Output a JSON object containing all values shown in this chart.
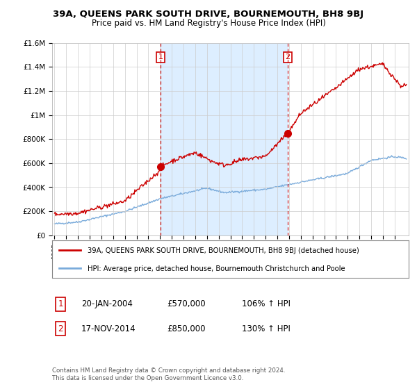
{
  "title": "39A, QUEENS PARK SOUTH DRIVE, BOURNEMOUTH, BH8 9BJ",
  "subtitle": "Price paid vs. HM Land Registry's House Price Index (HPI)",
  "legend_line1": "39A, QUEENS PARK SOUTH DRIVE, BOURNEMOUTH, BH8 9BJ (detached house)",
  "legend_line2": "HPI: Average price, detached house, Bournemouth Christchurch and Poole",
  "annotation1_label": "1",
  "annotation1_date": "20-JAN-2004",
  "annotation1_price": "£570,000",
  "annotation1_hpi": "106% ↑ HPI",
  "annotation2_label": "2",
  "annotation2_date": "17-NOV-2014",
  "annotation2_price": "£850,000",
  "annotation2_hpi": "130% ↑ HPI",
  "footer": "Contains HM Land Registry data © Crown copyright and database right 2024.\nThis data is licensed under the Open Government Licence v3.0.",
  "red_color": "#cc0000",
  "blue_color": "#7aabdb",
  "shade_color": "#ddeeff",
  "annotation_color": "#cc0000",
  "background_color": "#ffffff",
  "grid_color": "#cccccc",
  "ylim": [
    0,
    1600000
  ],
  "yticks": [
    0,
    200000,
    400000,
    600000,
    800000,
    1000000,
    1200000,
    1400000,
    1600000
  ],
  "ytick_labels": [
    "£0",
    "£200K",
    "£400K",
    "£600K",
    "£800K",
    "£1M",
    "£1.2M",
    "£1.4M",
    "£1.6M"
  ],
  "sale1_year": 2004.05,
  "sale1_price": 570000,
  "sale2_year": 2014.88,
  "sale2_price": 850000,
  "vline1_year": 2004.05,
  "vline2_year": 2014.88,
  "xlim_left": 1994.8,
  "xlim_right": 2025.2
}
